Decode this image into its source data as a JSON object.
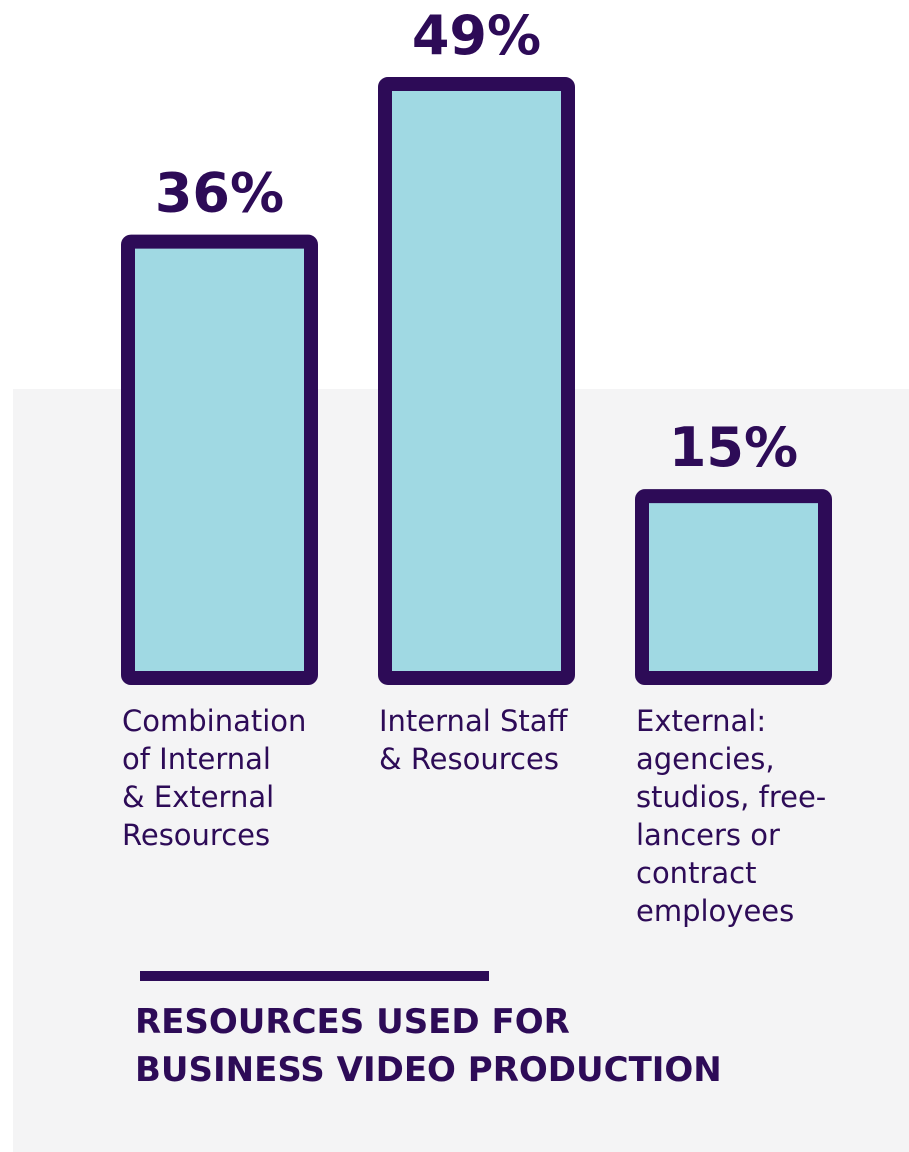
{
  "colors": {
    "bar_fill": "#a0d9e3",
    "bar_stroke": "#2d0b57",
    "text": "#2d0b57",
    "panel_bg": "#f4f4f5"
  },
  "chart_data": {
    "type": "bar",
    "title": "RESOURCES USED FOR\nBUSINESS VIDEO PRODUCTION",
    "categories": [
      "Combination\nof Internal\n& External\nResources",
      "Internal Staff\n& Resources",
      "External:\nagencies,\nstudios, free-\nlancers or\ncontract\nemployees"
    ],
    "values": [
      36,
      49,
      15
    ],
    "value_labels": [
      "36%",
      "49%",
      "15%"
    ],
    "unit": "%",
    "ylim": [
      0,
      49
    ],
    "grid": false,
    "legend": "none"
  }
}
